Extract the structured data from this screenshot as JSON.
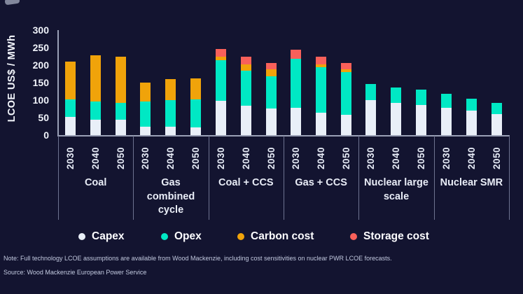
{
  "chart_data": {
    "type": "bar",
    "stacked": true,
    "title": "",
    "ylabel": "LCOE US$ / MWh",
    "ylim": [
      0,
      300
    ],
    "yticks": [
      0,
      50,
      100,
      150,
      200,
      250,
      300
    ],
    "grid": false,
    "legend_position": "bottom",
    "years": [
      "2030",
      "2040",
      "2050"
    ],
    "segments": [
      {
        "key": "capex",
        "label": "Capex",
        "color": "#e9eff8"
      },
      {
        "key": "opex",
        "label": "Opex",
        "color": "#00e8c4"
      },
      {
        "key": "carbon",
        "label": "Carbon cost",
        "color": "#f0a30a"
      },
      {
        "key": "storage",
        "label": "Storage cost",
        "color": "#f8605a"
      }
    ],
    "groups": [
      {
        "label": "Coal",
        "values": [
          {
            "year": "2030",
            "capex": 53,
            "opex": 50,
            "carbon": 108,
            "storage": 0
          },
          {
            "year": "2040",
            "capex": 45,
            "opex": 52,
            "carbon": 131,
            "storage": 0
          },
          {
            "year": "2050",
            "capex": 45,
            "opex": 47,
            "carbon": 133,
            "storage": 0
          }
        ]
      },
      {
        "label": "Gas combined cycle",
        "values": [
          {
            "year": "2030",
            "capex": 25,
            "opex": 72,
            "carbon": 53,
            "storage": 0
          },
          {
            "year": "2040",
            "capex": 25,
            "opex": 76,
            "carbon": 60,
            "storage": 0
          },
          {
            "year": "2050",
            "capex": 23,
            "opex": 80,
            "carbon": 60,
            "storage": 0
          }
        ]
      },
      {
        "label": "Coal + CCS",
        "values": [
          {
            "year": "2030",
            "capex": 98,
            "opex": 117,
            "carbon": 10,
            "storage": 22
          },
          {
            "year": "2040",
            "capex": 85,
            "opex": 100,
            "carbon": 17,
            "storage": 22
          },
          {
            "year": "2050",
            "capex": 77,
            "opex": 91,
            "carbon": 20,
            "storage": 19
          }
        ]
      },
      {
        "label": "Gas + CCS",
        "values": [
          {
            "year": "2030",
            "capex": 79,
            "opex": 140,
            "carbon": 0,
            "storage": 25
          },
          {
            "year": "2040",
            "capex": 65,
            "opex": 130,
            "carbon": 8,
            "storage": 22
          },
          {
            "year": "2050",
            "capex": 58,
            "opex": 122,
            "carbon": 9,
            "storage": 18
          }
        ]
      },
      {
        "label": "Nuclear large scale",
        "values": [
          {
            "year": "2030",
            "capex": 101,
            "opex": 46,
            "carbon": 0,
            "storage": 0
          },
          {
            "year": "2040",
            "capex": 92,
            "opex": 44,
            "carbon": 0,
            "storage": 0
          },
          {
            "year": "2050",
            "capex": 87,
            "opex": 43,
            "carbon": 0,
            "storage": 0
          }
        ]
      },
      {
        "label": "Nuclear SMR",
        "values": [
          {
            "year": "2030",
            "capex": 78,
            "opex": 40,
            "carbon": 0,
            "storage": 0
          },
          {
            "year": "2040",
            "capex": 70,
            "opex": 35,
            "carbon": 0,
            "storage": 0
          },
          {
            "year": "2050",
            "capex": 60,
            "opex": 32,
            "carbon": 0,
            "storage": 0
          }
        ]
      }
    ]
  },
  "colors": {
    "background": "#131430",
    "axis": "#9aa0b6",
    "divider": "#6e7390",
    "tick_text": "#f0f3fa",
    "label_text": "#e9edf7",
    "note_text": "#c3cae0"
  },
  "footer": {
    "note": "Note: Full technology LCOE assumptions are available from Wood Mackenzie, including cost sensitivities on nuclear PWR LCOE forecasts.",
    "source": "Source: Wood Mackenzie European Power Service"
  }
}
